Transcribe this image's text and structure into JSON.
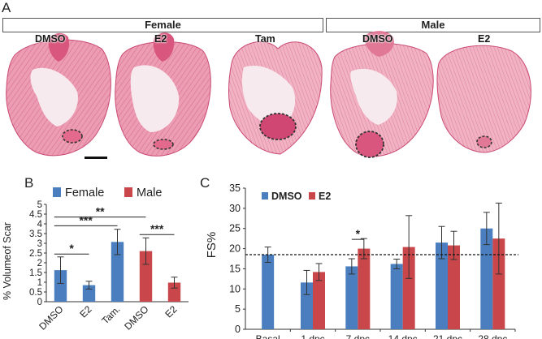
{
  "panelA": {
    "letter": "A",
    "groups": {
      "female": "Female",
      "male": "Male"
    },
    "hearts": [
      "DMSO",
      "E2",
      "Tam",
      "DMSO",
      "E2"
    ],
    "colors": {
      "tissue": "#e98fa8",
      "tissue_dark": "#c94a73",
      "lumen": "#f6e9ee",
      "scar_outline": "#333333"
    }
  },
  "panelB": {
    "letter": "B",
    "legend": [
      "Female",
      "Male"
    ]
  },
  "panelC": {
    "letter": "C",
    "legend": [
      "DMSO",
      "E2"
    ]
  },
  "chart_data": [
    {
      "type": "bar",
      "panel": "B",
      "ylabel": "% Volumeof Scar",
      "xlabel": "",
      "ylim": [
        0,
        5
      ],
      "yticks": [
        0,
        0.5,
        1,
        1.5,
        2,
        2.5,
        3,
        3.5,
        4,
        4.5,
        5
      ],
      "categories": [
        "DMSO",
        "E2",
        "Tam.",
        "DMSO",
        "E2"
      ],
      "values": [
        1.62,
        0.85,
        3.07,
        2.6,
        0.98
      ],
      "errors": [
        0.68,
        0.2,
        0.65,
        0.68,
        0.28
      ],
      "bar_series": [
        0,
        0,
        0,
        1,
        1
      ],
      "series": [
        {
          "name": "Female",
          "color": "#4a7ebf"
        },
        {
          "name": "Male",
          "color": "#c9474a"
        }
      ],
      "significance": [
        {
          "from": 0,
          "to": 1,
          "y": 2.45,
          "label": "*"
        },
        {
          "from": 0,
          "to": 2,
          "y": 3.9,
          "label": "***"
        },
        {
          "from": 0,
          "to": 3,
          "y": 4.35,
          "label": "**"
        },
        {
          "from": 3,
          "to": 4,
          "y": 3.45,
          "label": "***"
        }
      ],
      "grid": false
    },
    {
      "type": "bar",
      "panel": "C",
      "ylabel": "FS%",
      "xlabel": "",
      "ylim": [
        0,
        35
      ],
      "yticks": [
        0,
        5,
        10,
        15,
        20,
        25,
        30,
        35
      ],
      "categories": [
        "Basal",
        "1 dpc",
        "7 dpc",
        "14 dpc",
        "21 dpc",
        "28 dpc"
      ],
      "series": [
        {
          "name": "DMSO",
          "color": "#4a7ebf",
          "values": [
            18.5,
            11.6,
            15.6,
            16.2,
            21.5,
            25.0
          ],
          "errors": [
            1.9,
            3.0,
            1.9,
            1.2,
            4.0,
            4.0
          ]
        },
        {
          "name": "E2",
          "color": "#c9474a",
          "values": [
            null,
            14.2,
            20.0,
            20.4,
            20.8,
            22.5
          ],
          "errors": [
            null,
            2.1,
            2.5,
            7.8,
            3.5,
            8.8
          ]
        }
      ],
      "reference_line": 18.5,
      "significance": [
        {
          "category": 2,
          "y": 22.3,
          "label": "*"
        }
      ],
      "legend_position": "top-left",
      "grid": false
    }
  ]
}
